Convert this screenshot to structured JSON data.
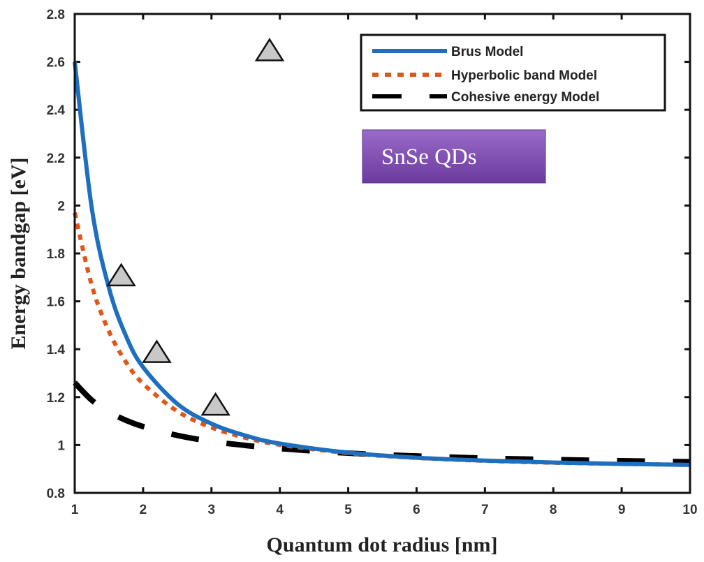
{
  "chart_data": {
    "type": "line",
    "xlabel": "Quantum dot radius [nm]",
    "ylabel": "Energy bandgap [eV]",
    "xlim": [
      1,
      10
    ],
    "ylim": [
      0.8,
      2.8
    ],
    "xticks": [
      "1",
      "2",
      "3",
      "4",
      "5",
      "6",
      "7",
      "8",
      "9",
      "10"
    ],
    "yticks": [
      "0.8",
      "1",
      "1.2",
      "1.4",
      "1.6",
      "1.8",
      "2",
      "2.2",
      "2.4",
      "2.6",
      "2.8"
    ],
    "grid": false,
    "legend_position": "top-right",
    "x": [
      1,
      1.25,
      1.5,
      1.75,
      2,
      2.5,
      3,
      3.5,
      4,
      5,
      6,
      7,
      8,
      9,
      10
    ],
    "series": [
      {
        "name": "Brus Model",
        "color": "#1f6fc0",
        "style": "solid",
        "values": [
          2.6,
          1.988,
          1.656,
          1.455,
          1.325,
          1.172,
          1.089,
          1.039,
          1.006,
          0.968,
          0.947,
          0.935,
          0.927,
          0.921,
          0.917
        ]
      },
      {
        "name": "Hyperbolic band Model",
        "color": "#e0561a",
        "style": "dotted",
        "values": [
          1.97,
          1.666,
          1.475,
          1.346,
          1.256,
          1.141,
          1.073,
          1.03,
          1.001,
          0.966,
          0.946,
          0.934,
          0.926,
          0.921,
          0.917
        ]
      },
      {
        "name": "Cohesive energy Model",
        "color": "#000000",
        "style": "dashed",
        "values": [
          1.26,
          1.187,
          1.138,
          1.103,
          1.077,
          1.04,
          1.015,
          0.998,
          0.985,
          0.966,
          0.954,
          0.945,
          0.939,
          0.934,
          0.93
        ]
      }
    ],
    "markers": {
      "shape": "triangle",
      "color": "#c8c8c8",
      "points": [
        {
          "x": 1.68,
          "y": 1.71
        },
        {
          "x": 2.2,
          "y": 1.39
        },
        {
          "x": 3.06,
          "y": 1.17
        },
        {
          "x": 3.85,
          "y": 2.65
        }
      ]
    },
    "annotation": {
      "text": "SnSe QDs",
      "color": "#7d4bb0"
    }
  }
}
